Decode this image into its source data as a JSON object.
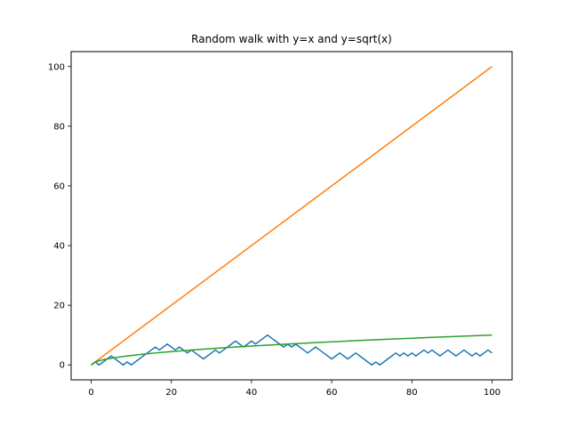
{
  "chart_data": {
    "type": "line",
    "title": "Random walk with y=x and y=sqrt(x)",
    "xlabel": "",
    "ylabel": "",
    "xlim": [
      -5,
      105
    ],
    "ylim": [
      -5,
      105
    ],
    "xticks": [
      0,
      20,
      40,
      60,
      80,
      100
    ],
    "yticks": [
      0,
      20,
      40,
      60,
      80,
      100
    ],
    "grid": false,
    "series": [
      {
        "color": "#1f77b4",
        "x": [
          0,
          1,
          2,
          3,
          4,
          5,
          6,
          7,
          8,
          9,
          10,
          11,
          12,
          13,
          14,
          15,
          16,
          17,
          18,
          19,
          20,
          21,
          22,
          23,
          24,
          25,
          26,
          27,
          28,
          29,
          30,
          31,
          32,
          33,
          34,
          35,
          36,
          37,
          38,
          39,
          40,
          41,
          42,
          43,
          44,
          45,
          46,
          47,
          48,
          49,
          50,
          51,
          52,
          53,
          54,
          55,
          56,
          57,
          58,
          59,
          60,
          61,
          62,
          63,
          64,
          65,
          66,
          67,
          68,
          69,
          70,
          71,
          72,
          73,
          74,
          75,
          76,
          77,
          78,
          79,
          80,
          81,
          82,
          83,
          84,
          85,
          86,
          87,
          88,
          89,
          90,
          91,
          92,
          93,
          94,
          95,
          96,
          97,
          98,
          99,
          100
        ],
        "y": [
          0,
          1,
          0,
          1,
          2,
          3,
          2,
          1,
          0,
          1,
          0,
          1,
          2,
          3,
          4,
          5,
          6,
          5,
          6,
          7,
          6,
          5,
          6,
          5,
          4,
          5,
          4,
          3,
          2,
          3,
          4,
          5,
          4,
          5,
          6,
          7,
          8,
          7,
          6,
          7,
          8,
          7,
          8,
          9,
          10,
          9,
          8,
          7,
          6,
          7,
          6,
          7,
          6,
          5,
          4,
          5,
          6,
          5,
          4,
          3,
          2,
          3,
          4,
          3,
          2,
          3,
          4,
          3,
          2,
          1,
          0,
          1,
          0,
          1,
          2,
          3,
          4,
          3,
          4,
          3,
          4,
          3,
          4,
          5,
          4,
          5,
          4,
          3,
          4,
          5,
          4,
          3,
          4,
          5,
          4,
          3,
          4,
          3,
          4,
          5,
          4
        ]
      },
      {
        "color": "#ff7f0e",
        "x": [
          0,
          100
        ],
        "y": [
          0,
          100
        ]
      },
      {
        "color": "#2ca02c",
        "x": [
          0,
          1,
          2,
          3,
          4,
          5,
          6,
          7,
          8,
          9,
          10,
          12,
          14,
          16,
          18,
          20,
          25,
          30,
          35,
          40,
          45,
          50,
          55,
          60,
          65,
          70,
          75,
          80,
          85,
          90,
          95,
          100
        ],
        "y": [
          0,
          1,
          1.414,
          1.732,
          2,
          2.236,
          2.449,
          2.646,
          2.828,
          3,
          3.162,
          3.464,
          3.742,
          4,
          4.243,
          4.472,
          5,
          5.477,
          5.916,
          6.325,
          6.708,
          7.071,
          7.416,
          7.746,
          8.062,
          8.367,
          8.66,
          8.944,
          9.22,
          9.487,
          9.747,
          10
        ]
      }
    ]
  }
}
